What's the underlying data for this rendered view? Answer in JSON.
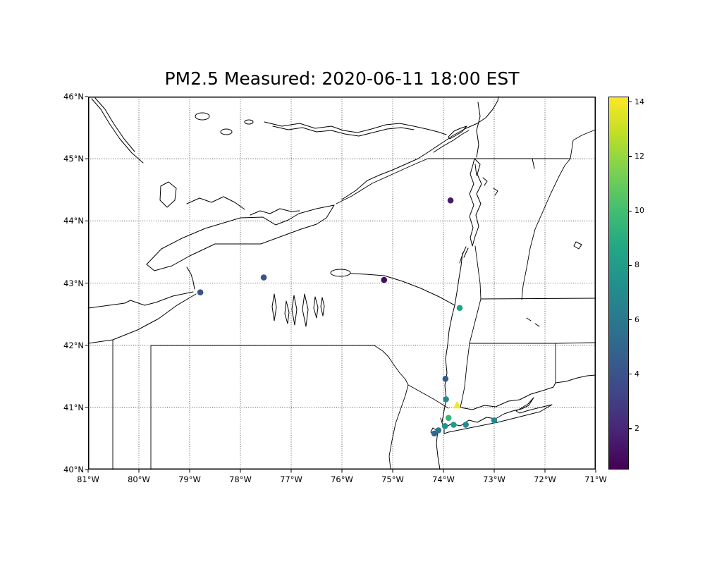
{
  "figure": {
    "title": "PM2.5 Measured: 2020-06-11 18:00 EST"
  },
  "axes": {
    "x_tick_labels": [
      "81°W",
      "80°W",
      "79°W",
      "78°W",
      "77°W",
      "76°W",
      "75°W",
      "74°W",
      "73°W",
      "72°W",
      "71°W"
    ],
    "y_tick_labels": [
      "40°N",
      "41°N",
      "42°N",
      "43°N",
      "44°N",
      "45°N",
      "46°N"
    ],
    "lon_range": [
      -81,
      -71
    ],
    "lat_range": [
      40,
      46
    ],
    "grid": "dotted"
  },
  "colorbar": {
    "colormap": "viridis",
    "vmin": 0.5,
    "vmax": 14.2,
    "tick_values": [
      2,
      4,
      6,
      8,
      10,
      12,
      14
    ],
    "tick_labels": [
      "2",
      "4",
      "6",
      "8",
      "10",
      "12",
      "14"
    ]
  },
  "chart_data": {
    "type": "scatter",
    "title": "PM2.5 Measured: 2020-06-11 18:00 EST",
    "x": "longitude_deg",
    "y": "latitude_deg",
    "color_value": "pm25",
    "xlim": [
      -81,
      -71
    ],
    "ylim": [
      40,
      46
    ],
    "legend": "colorbar-right",
    "points": [
      {
        "lon": -73.86,
        "lat": 44.33,
        "value": 1.5
      },
      {
        "lon": -77.54,
        "lat": 43.09,
        "value": 4.0
      },
      {
        "lon": -78.79,
        "lat": 42.85,
        "value": 4.0
      },
      {
        "lon": -75.17,
        "lat": 43.05,
        "value": 1.0
      },
      {
        "lon": -73.68,
        "lat": 42.6,
        "value": 8.5
      },
      {
        "lon": -73.96,
        "lat": 41.46,
        "value": 4.5
      },
      {
        "lon": -73.95,
        "lat": 41.13,
        "value": 7.0
      },
      {
        "lon": -73.73,
        "lat": 41.03,
        "value": 14.0,
        "marker": "triangle"
      },
      {
        "lon": -73.9,
        "lat": 40.83,
        "value": 9.5
      },
      {
        "lon": -73.97,
        "lat": 40.7,
        "value": 7.5
      },
      {
        "lon": -74.1,
        "lat": 40.63,
        "value": 6.0
      },
      {
        "lon": -73.8,
        "lat": 40.72,
        "value": 8.0
      },
      {
        "lon": -73.56,
        "lat": 40.72,
        "value": 7.0
      },
      {
        "lon": -73.0,
        "lat": 40.79,
        "value": 7.0
      },
      {
        "lon": -74.18,
        "lat": 40.58,
        "value": 5.0
      }
    ]
  }
}
